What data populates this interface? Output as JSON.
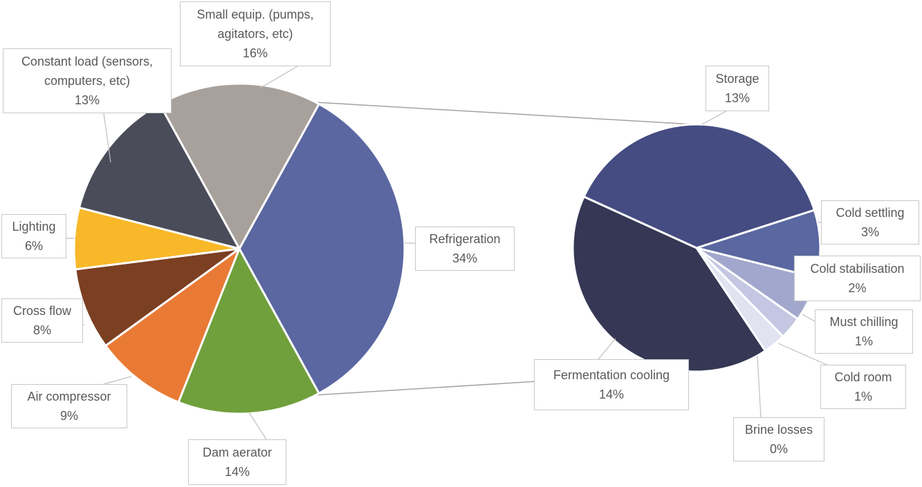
{
  "chart_data": [
    {
      "type": "pie",
      "categories": [
        "Refrigeration",
        "Dam aerator",
        "Air compressor",
        "Cross flow",
        "Lighting",
        "Constant load (sensors, computers, etc)",
        "Small equip. (pumps, agitators, etc)"
      ],
      "values": [
        34,
        14,
        9,
        8,
        6,
        13,
        16
      ],
      "value_labels": [
        "34%",
        "14%",
        "9%",
        "8%",
        "6%",
        "13%",
        "16%"
      ],
      "colors": [
        "#5b67a1",
        "#70a03c",
        "#e97a35",
        "#7b3f22",
        "#f8b829",
        "#4b4c5a",
        "#a8a09b"
      ]
    },
    {
      "type": "pie",
      "categories": [
        "Storage",
        "Cold settling",
        "Cold stabilisation",
        "Must chilling",
        "Cold room",
        "Brine losses",
        "Fermentation cooling"
      ],
      "values": [
        13,
        3,
        2,
        1,
        1,
        0,
        14
      ],
      "value_labels": [
        "13%",
        "3%",
        "2%",
        "1%",
        "1%",
        "0%",
        "14%"
      ],
      "colors": [
        "#454c82",
        "#5a67a0",
        "#a1a7cd",
        "#c3c7e2",
        "#e1e3f1",
        "#2f3458",
        "#353754"
      ]
    }
  ]
}
